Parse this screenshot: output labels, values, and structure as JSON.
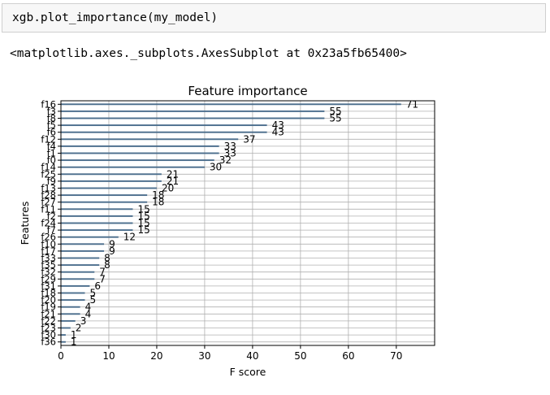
{
  "cell": {
    "code": "xgb.plot_importance(my_model)",
    "output": "<matplotlib.axes._subplots.AxesSubplot at 0x23a5fb65400>"
  },
  "chart_data": {
    "type": "bar",
    "orientation": "horizontal",
    "title": "Feature importance",
    "xlabel": "F score",
    "ylabel": "Features",
    "xlim": [
      0,
      78
    ],
    "xticks": [
      0,
      10,
      20,
      30,
      40,
      50,
      60,
      70
    ],
    "grid": true,
    "bar_color": "#4a6d8c",
    "categories": [
      "f16",
      "f3",
      "f8",
      "f5",
      "f6",
      "f12",
      "f4",
      "f1",
      "f0",
      "f14",
      "f25",
      "f9",
      "f13",
      "f28",
      "f27",
      "f11",
      "f2",
      "f24",
      "f7",
      "f26",
      "f10",
      "f17",
      "f33",
      "f35",
      "f32",
      "f29",
      "f31",
      "f18",
      "f20",
      "f19",
      "f21",
      "f22",
      "f23",
      "f30",
      "f36"
    ],
    "values": [
      71,
      55,
      55,
      43,
      43,
      37,
      33,
      33,
      32,
      30,
      21,
      21,
      20,
      18,
      18,
      15,
      15,
      15,
      15,
      12,
      9,
      9,
      8,
      8,
      7,
      7,
      6,
      5,
      5,
      4,
      4,
      3,
      2,
      1,
      1
    ]
  }
}
